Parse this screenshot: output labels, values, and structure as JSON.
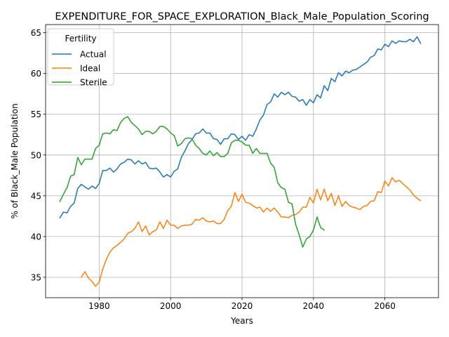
{
  "chart_data": {
    "type": "line",
    "title": "EXPENDITURE_FOR_SPACE_EXPLORATION_Black_Male_Population_Scoring",
    "xlabel": "Years",
    "ylabel": "% of Black_Male Population",
    "xlim": [
      1965,
      2075
    ],
    "ylim": [
      32.5,
      66.0
    ],
    "xticks": [
      1980,
      2000,
      2020,
      2040,
      2060
    ],
    "yticks": [
      35,
      40,
      45,
      50,
      55,
      60,
      65
    ],
    "grid": true,
    "legend": {
      "title": "Fertility",
      "placement": "top-left"
    },
    "series": [
      {
        "name": "Actual",
        "color": "#1f77b4",
        "x": [
          1969,
          1970,
          1971,
          1972,
          1973,
          1974,
          1975,
          1976,
          1977,
          1978,
          1979,
          1980,
          1981,
          1982,
          1983,
          1984,
          1985,
          1986,
          1987,
          1988,
          1989,
          1990,
          1991,
          1992,
          1993,
          1994,
          1995,
          1996,
          1997,
          1998,
          1999,
          2000,
          2001,
          2002,
          2003,
          2004,
          2005,
          2006,
          2007,
          2008,
          2009,
          2010,
          2011,
          2012,
          2013,
          2014,
          2015,
          2016,
          2017,
          2018,
          2019,
          2020,
          2021,
          2022,
          2023,
          2024,
          2025,
          2026,
          2027,
          2028,
          2029,
          2030,
          2031,
          2032,
          2033,
          2034,
          2035,
          2036,
          2037,
          2038,
          2039,
          2040,
          2041,
          2042,
          2043,
          2044,
          2045,
          2046,
          2047,
          2048,
          2049,
          2050,
          2051,
          2052,
          2053,
          2054,
          2055,
          2056,
          2057,
          2058,
          2059,
          2060,
          2061,
          2062,
          2063,
          2064,
          2065,
          2066,
          2067,
          2068,
          2069,
          2070
        ],
        "values": [
          42.3,
          43.0,
          42.9,
          43.7,
          44.1,
          45.9,
          46.4,
          46.1,
          45.8,
          46.2,
          45.9,
          46.5,
          48.1,
          48.1,
          48.4,
          47.9,
          48.3,
          48.9,
          49.1,
          49.5,
          49.4,
          48.9,
          49.3,
          48.9,
          49.1,
          48.4,
          48.3,
          48.4,
          47.9,
          47.3,
          47.6,
          47.3,
          48.0,
          48.3,
          49.7,
          50.5,
          51.4,
          51.9,
          52.6,
          52.7,
          53.2,
          52.7,
          52.7,
          52.0,
          51.9,
          51.3,
          52.0,
          52.0,
          52.6,
          52.5,
          51.9,
          52.3,
          51.8,
          52.5,
          52.3,
          53.2,
          54.3,
          54.9,
          56.2,
          56.5,
          57.5,
          57.1,
          57.7,
          57.4,
          57.7,
          57.2,
          57.1,
          56.6,
          56.8,
          56.1,
          56.8,
          56.4,
          57.4,
          57.0,
          58.5,
          57.9,
          59.4,
          59.0,
          60.1,
          59.7,
          60.3,
          60.1,
          60.4,
          60.5,
          60.8,
          61.1,
          61.4,
          62.0,
          62.2,
          63.0,
          62.9,
          63.6,
          63.3,
          64.0,
          63.7,
          64.0,
          63.9,
          63.9,
          64.2,
          63.9,
          64.5,
          63.7
        ]
      },
      {
        "name": "Ideal",
        "color": "#ff7f0e",
        "x": [
          1975,
          1976,
          1977,
          1978,
          1979,
          1980,
          1981,
          1982,
          1983,
          1984,
          1985,
          1986,
          1987,
          1988,
          1989,
          1990,
          1991,
          1992,
          1993,
          1994,
          1995,
          1996,
          1997,
          1998,
          1999,
          2000,
          2001,
          2002,
          2003,
          2004,
          2005,
          2006,
          2007,
          2008,
          2009,
          2010,
          2011,
          2012,
          2013,
          2014,
          2015,
          2016,
          2017,
          2018,
          2019,
          2020,
          2021,
          2022,
          2023,
          2024,
          2025,
          2026,
          2027,
          2028,
          2029,
          2030,
          2031,
          2032,
          2033,
          2034,
          2035,
          2036,
          2037,
          2038,
          2039,
          2040,
          2041,
          2042,
          2043,
          2044,
          2045,
          2046,
          2047,
          2048,
          2049,
          2050,
          2051,
          2052,
          2053,
          2054,
          2055,
          2056,
          2057,
          2058,
          2059,
          2060,
          2061,
          2062,
          2063,
          2064,
          2065,
          2066,
          2067,
          2068,
          2069,
          2070
        ],
        "values": [
          35.0,
          35.7,
          34.9,
          34.5,
          33.9,
          34.4,
          36.0,
          37.2,
          38.1,
          38.6,
          38.9,
          39.3,
          39.7,
          40.4,
          40.6,
          41.0,
          41.8,
          40.6,
          41.3,
          40.2,
          40.6,
          40.8,
          41.8,
          41.0,
          42.0,
          41.4,
          41.4,
          41.0,
          41.3,
          41.4,
          41.4,
          41.5,
          42.1,
          42.0,
          42.3,
          41.9,
          41.8,
          41.9,
          41.6,
          41.6,
          42.1,
          43.2,
          43.7,
          45.4,
          44.3,
          45.2,
          44.2,
          44.1,
          43.8,
          43.5,
          43.6,
          43.0,
          43.5,
          43.1,
          43.5,
          43.0,
          42.4,
          42.4,
          42.3,
          42.6,
          42.7,
          43.0,
          43.6,
          43.6,
          44.8,
          44.1,
          45.8,
          44.5,
          45.8,
          44.4,
          45.3,
          43.8,
          45.0,
          43.7,
          44.3,
          43.8,
          43.6,
          43.5,
          43.3,
          43.7,
          43.8,
          44.3,
          44.4,
          45.5,
          45.4,
          46.8,
          46.2,
          47.2,
          46.7,
          46.9,
          46.5,
          46.1,
          45.7,
          45.1,
          44.7,
          44.4
        ]
      },
      {
        "name": "Sterile",
        "color": "#2ca02c",
        "x": [
          1969,
          1970,
          1971,
          1972,
          1973,
          1974,
          1975,
          1976,
          1977,
          1978,
          1979,
          1980,
          1981,
          1982,
          1983,
          1984,
          1985,
          1986,
          1987,
          1988,
          1989,
          1990,
          1991,
          1992,
          1993,
          1994,
          1995,
          1996,
          1997,
          1998,
          1999,
          2000,
          2001,
          2002,
          2003,
          2004,
          2005,
          2006,
          2007,
          2008,
          2009,
          2010,
          2011,
          2012,
          2013,
          2014,
          2015,
          2016,
          2017,
          2018,
          2019,
          2020,
          2021,
          2022,
          2023,
          2024,
          2025,
          2026,
          2027,
          2028,
          2029,
          2030,
          2031,
          2032,
          2033,
          2034,
          2035,
          2036,
          2037,
          2038,
          2039,
          2040,
          2041,
          2042,
          2043
        ],
        "values": [
          44.3,
          45.2,
          46.0,
          47.4,
          47.6,
          49.7,
          48.8,
          49.5,
          49.5,
          49.5,
          50.8,
          51.2,
          52.6,
          52.7,
          52.6,
          53.1,
          53.0,
          54.0,
          54.5,
          54.7,
          54.0,
          53.6,
          53.2,
          52.5,
          52.9,
          52.9,
          52.6,
          52.9,
          53.5,
          53.5,
          53.2,
          52.7,
          52.4,
          51.1,
          51.4,
          52.0,
          52.1,
          52.0,
          51.2,
          50.8,
          50.2,
          50.0,
          50.5,
          49.9,
          50.3,
          49.8,
          49.8,
          50.2,
          51.5,
          51.8,
          51.8,
          51.6,
          51.2,
          51.2,
          50.2,
          50.8,
          50.2,
          50.2,
          50.2,
          49.0,
          48.5,
          46.6,
          46.0,
          45.8,
          44.2,
          44.0,
          41.5,
          40.2,
          38.7,
          39.7,
          40.0,
          40.8,
          42.4,
          41.1,
          40.8
        ]
      }
    ]
  }
}
